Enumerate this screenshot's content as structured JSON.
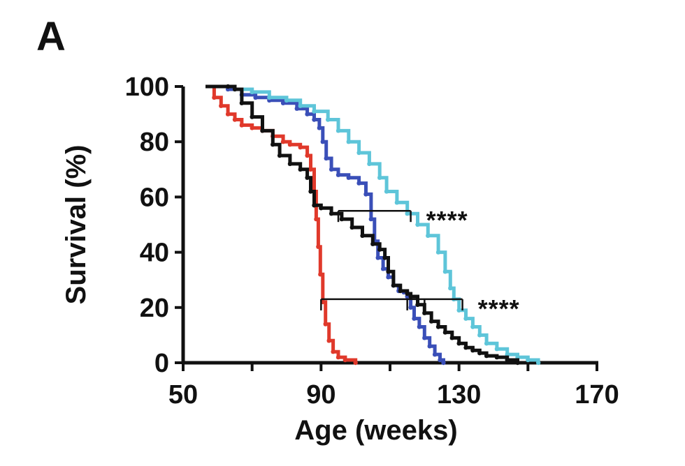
{
  "panel_label": "A",
  "colors": {
    "red": "#e0392b",
    "dark_blue": "#3a4fb8",
    "light_blue": "#5ec5d9",
    "black": "#111111"
  },
  "chart_data": {
    "type": "line",
    "subtype": "step (Kaplan-Meier survival curves)",
    "xlabel": "Age (weeks)",
    "ylabel": "Survival (%)",
    "xlim": [
      50,
      170
    ],
    "ylim": [
      0,
      100
    ],
    "x_ticks": [
      50,
      90,
      130,
      170
    ],
    "y_ticks": [
      0,
      20,
      40,
      60,
      80,
      100
    ],
    "grid": false,
    "legend": "none",
    "series": [
      {
        "color": "#e0392b",
        "points": [
          [
            57,
            100
          ],
          [
            59,
            96
          ],
          [
            61,
            93
          ],
          [
            63,
            90
          ],
          [
            65,
            88
          ],
          [
            67,
            86
          ],
          [
            70,
            85
          ],
          [
            73,
            84
          ],
          [
            76,
            82
          ],
          [
            79,
            80
          ],
          [
            81,
            79
          ],
          [
            84,
            78
          ],
          [
            86,
            75
          ],
          [
            87,
            70
          ],
          [
            88,
            62
          ],
          [
            88.6,
            52
          ],
          [
            89.2,
            42
          ],
          [
            89.8,
            32
          ],
          [
            90.5,
            22
          ],
          [
            91.3,
            14
          ],
          [
            92.3,
            8
          ],
          [
            93.5,
            4
          ],
          [
            95,
            2
          ],
          [
            97,
            1
          ],
          [
            100,
            0
          ]
        ]
      },
      {
        "color": "#3a4fb8",
        "points": [
          [
            57,
            100
          ],
          [
            63,
            99
          ],
          [
            67,
            97
          ],
          [
            71,
            96
          ],
          [
            75,
            95
          ],
          [
            79,
            94
          ],
          [
            83,
            92
          ],
          [
            86,
            90
          ],
          [
            88,
            88
          ],
          [
            89.5,
            85
          ],
          [
            90.5,
            80
          ],
          [
            91.5,
            74
          ],
          [
            93,
            70
          ],
          [
            95,
            68
          ],
          [
            98,
            67
          ],
          [
            101,
            65
          ],
          [
            103,
            61
          ],
          [
            104.5,
            52
          ],
          [
            105.5,
            44
          ],
          [
            106.5,
            38
          ],
          [
            108,
            34
          ],
          [
            109.5,
            31
          ],
          [
            111,
            28
          ],
          [
            112.5,
            26
          ],
          [
            114,
            25.5
          ],
          [
            115,
            24
          ],
          [
            116,
            20
          ],
          [
            117,
            16
          ],
          [
            118.5,
            13
          ],
          [
            120,
            9
          ],
          [
            121.5,
            6
          ],
          [
            123,
            3
          ],
          [
            124.5,
            1
          ],
          [
            125.5,
            0
          ]
        ]
      },
      {
        "color": "#5ec5d9",
        "points": [
          [
            57,
            100
          ],
          [
            65,
            99
          ],
          [
            70,
            98
          ],
          [
            75,
            96
          ],
          [
            80,
            95
          ],
          [
            84,
            93
          ],
          [
            88,
            91
          ],
          [
            92,
            88
          ],
          [
            95,
            84
          ],
          [
            98,
            80
          ],
          [
            101,
            76
          ],
          [
            104,
            72
          ],
          [
            107,
            67
          ],
          [
            109,
            62
          ],
          [
            112,
            58
          ],
          [
            115,
            54
          ],
          [
            118,
            50
          ],
          [
            121,
            46
          ],
          [
            124,
            40
          ],
          [
            126,
            33
          ],
          [
            127.5,
            27
          ],
          [
            128.5,
            23
          ],
          [
            130,
            19
          ],
          [
            132,
            16
          ],
          [
            134,
            13
          ],
          [
            136,
            10
          ],
          [
            138,
            7
          ],
          [
            141,
            5
          ],
          [
            144,
            3
          ],
          [
            147,
            2
          ],
          [
            150,
            1
          ],
          [
            153,
            0
          ]
        ]
      },
      {
        "color": "#111111",
        "points": [
          [
            57,
            100
          ],
          [
            63,
            100
          ],
          [
            65,
            99
          ],
          [
            67,
            94
          ],
          [
            70,
            89
          ],
          [
            73,
            84
          ],
          [
            76,
            79
          ],
          [
            78,
            75
          ],
          [
            81,
            72
          ],
          [
            84,
            70
          ],
          [
            86,
            67
          ],
          [
            87,
            62
          ],
          [
            88,
            57
          ],
          [
            90,
            56
          ],
          [
            93,
            54
          ],
          [
            96,
            52
          ],
          [
            99,
            49
          ],
          [
            102,
            46
          ],
          [
            105,
            43
          ],
          [
            107,
            41
          ],
          [
            108.5,
            38
          ],
          [
            109.5,
            33
          ],
          [
            111,
            28
          ],
          [
            113,
            26
          ],
          [
            115,
            25
          ],
          [
            116,
            24
          ],
          [
            118,
            21
          ],
          [
            120,
            18
          ],
          [
            122,
            15
          ],
          [
            124,
            13
          ],
          [
            126,
            11
          ],
          [
            128,
            9
          ],
          [
            130,
            7
          ],
          [
            132,
            5.5
          ],
          [
            134,
            4.5
          ],
          [
            136,
            3.5
          ],
          [
            138,
            2.5
          ],
          [
            141,
            2
          ],
          [
            144,
            1
          ],
          [
            147,
            0
          ]
        ]
      }
    ],
    "annotations": [
      {
        "text": "****",
        "bracket": {
          "x_start": 95,
          "x_end": 116,
          "y": 55
        }
      },
      {
        "text": "****",
        "bracket": {
          "x_start": 90,
          "x_end": 131,
          "y": 23,
          "inner_ticks_x": [
            115,
            120
          ]
        }
      }
    ]
  }
}
